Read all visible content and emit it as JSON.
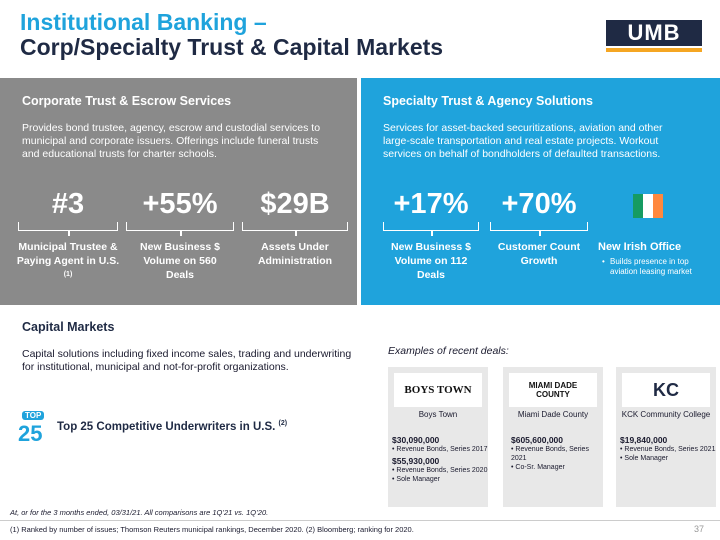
{
  "header": {
    "title_line1": "Institutional Banking –",
    "title_line2": "Corp/Specialty Trust & Capital Markets",
    "logo_text": "UMB"
  },
  "corporate_trust": {
    "heading": "Corporate Trust & Escrow Services",
    "description": "Provides bond trustee, agency, escrow and custodial services to municipal and corporate issuers. Offerings include funeral trusts and educational trusts for charter schools.",
    "stats": [
      {
        "value": "#3",
        "label": "Municipal Trustee & Paying Agent in U.S.",
        "sup": "(1)"
      },
      {
        "value": "+55%",
        "label": "New Business $ Volume on 560 Deals"
      },
      {
        "value": "$29B",
        "label": "Assets Under Administration"
      }
    ]
  },
  "specialty_trust": {
    "heading": "Specialty Trust & Agency Solutions",
    "description": "Services for asset-backed securitizations, aviation and other large-scale transportation and real estate projects. Workout services on behalf of bondholders of defaulted transactions.",
    "stats": [
      {
        "value": "+17%",
        "label": "New Business $ Volume on 112 Deals"
      },
      {
        "value": "+70%",
        "label": "Customer Count Growth"
      }
    ],
    "irish_office": {
      "label": "New Irish Office",
      "bullet": "Builds presence in top aviation leasing market",
      "flag_colors": [
        "#169b62",
        "#ffffff",
        "#ff883e"
      ]
    }
  },
  "capital_markets": {
    "heading": "Capital Markets",
    "description": "Capital solutions including fixed income sales, trading and underwriting for institutional, municipal and not-for-profit organizations.",
    "badge_top": "TOP",
    "badge_num": "25",
    "ranking": "Top 25 Competitive Underwriters in U.S.",
    "ranking_sup": "(2)"
  },
  "deals": {
    "intro": "Examples of recent deals:",
    "items": [
      {
        "logo_text": "BOYS TOWN",
        "name": "Boys Town",
        "amounts": [
          {
            "amount": "$30,090,000",
            "lines": [
              "Revenue Bonds, Series 2017"
            ]
          },
          {
            "amount": "$55,930,000",
            "lines": [
              "Revenue Bonds, Series 2020",
              "Sole Manager"
            ]
          }
        ]
      },
      {
        "logo_text": "MIAMI DADE COUNTY",
        "name": "Miami Dade County",
        "amounts": [
          {
            "amount": "$605,600,000",
            "lines": [
              "Revenue Bonds, Series 2021",
              "Co-Sr. Manager"
            ]
          }
        ]
      },
      {
        "logo_text": "KC",
        "name": "KCK Community College",
        "amounts": [
          {
            "amount": "$19,840,000",
            "lines": [
              "Revenue Bonds, Series 2021",
              "Sole Manager"
            ]
          }
        ]
      }
    ]
  },
  "footer": {
    "note1": "At, or for the 3 months ended, 03/31/21. All comparisons are 1Q’21 vs. 1Q’20.",
    "note2": "(1) Ranked by number of issues; Thomson Reuters municipal rankings, December 2020. (2) Bloomberg; ranking for 2020.",
    "page": "37"
  }
}
